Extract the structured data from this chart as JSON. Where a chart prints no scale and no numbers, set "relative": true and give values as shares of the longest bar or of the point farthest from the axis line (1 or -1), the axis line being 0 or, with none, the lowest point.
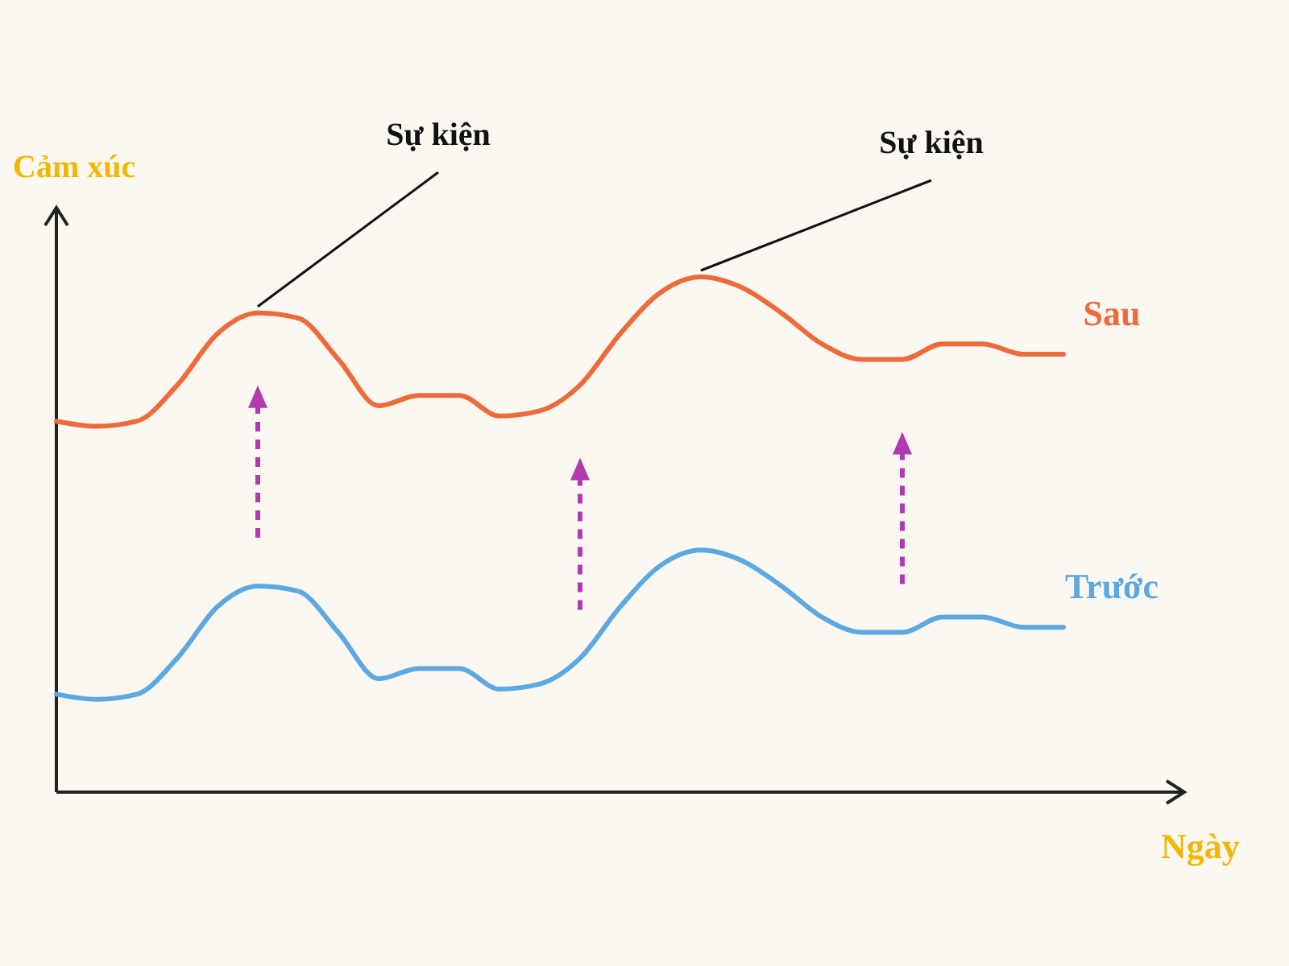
{
  "chart_data": {
    "type": "line",
    "relative": true,
    "xlabel": "Ngày",
    "ylabel": "Cảm xúc",
    "annotations": [
      "Sự kiện",
      "Sự kiện"
    ],
    "marker": "none",
    "line_style": "solid",
    "categories": [
      null,
      null,
      null,
      null,
      null,
      null,
      null,
      null,
      null,
      null,
      null,
      null,
      null,
      null,
      null,
      null,
      null,
      null,
      null,
      null,
      null,
      null,
      null,
      null,
      null,
      null
    ],
    "series": [
      {
        "name": "Sau",
        "color": "#ee6a3a",
        "values": [
          0.72,
          0.71,
          0.72,
          0.79,
          0.89,
          0.93,
          0.92,
          0.84,
          0.75,
          0.77,
          0.77,
          0.73,
          0.74,
          0.79,
          0.89,
          0.97,
          1,
          0.98,
          0.93,
          0.87,
          0.84,
          0.84,
          0.87,
          0.87,
          0.85,
          0.85
        ]
      },
      {
        "name": "Trước",
        "color": "#5ca8e0",
        "values": [
          0.19,
          0.18,
          0.19,
          0.26,
          0.36,
          0.4,
          0.39,
          0.31,
          0.22,
          0.24,
          0.24,
          0.2,
          0.21,
          0.26,
          0.36,
          0.44,
          0.47,
          0.45,
          0.4,
          0.34,
          0.31,
          0.31,
          0.34,
          0.34,
          0.32,
          0.32
        ]
      }
    ]
  }
}
